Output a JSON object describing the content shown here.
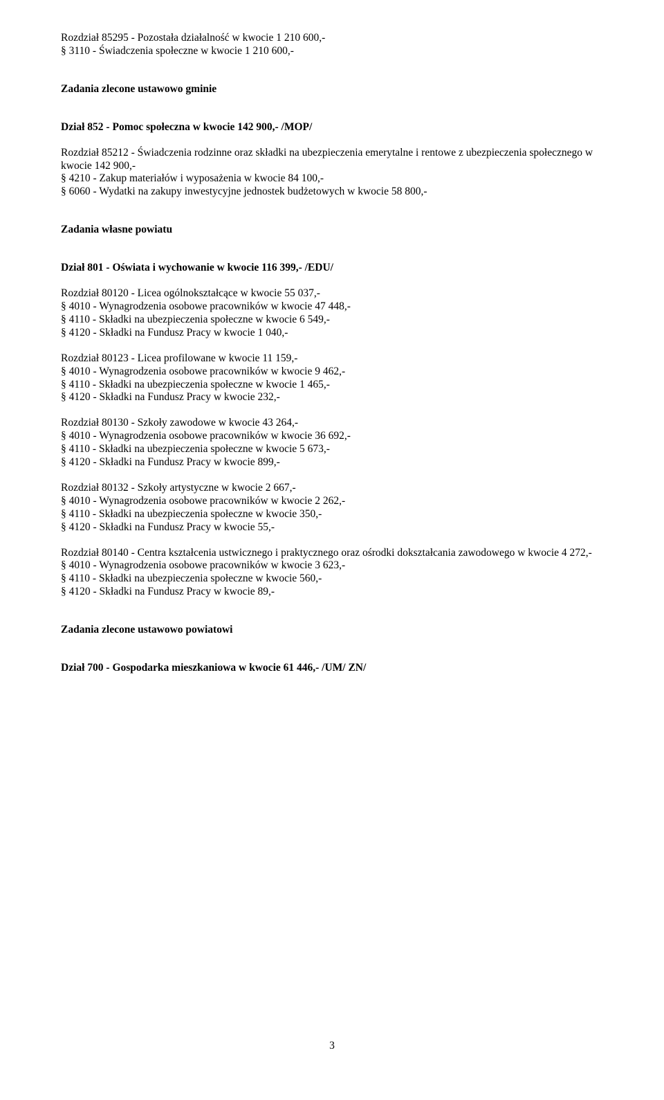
{
  "font": {
    "family": "Times New Roman",
    "body_size_pt": 12,
    "heading_weight": "bold",
    "body_weight": "normal"
  },
  "colors": {
    "text": "#000000",
    "background": "#ffffff"
  },
  "page_number": "3",
  "l1": "Rozdział 85295 - Pozostała działalność w kwocie 1 210 600,-",
  "l2": "§ 3110 - Świadczenia społeczne w kwocie 1 210 600,-",
  "h1": "Zadania zlecone ustawowo gminie",
  "h2": "Dział 852 - Pomoc społeczna w kwocie  142 900,-  /MOP/",
  "l3": "Rozdział 85212 - Świadczenia rodzinne oraz składki na ubezpieczenia emerytalne i rentowe z ubezpieczenia społecznego w kwocie  142 900,-",
  "l4": "§ 4210 - Zakup materiałów i wyposażenia w kwocie  84 100,-",
  "l5": "§ 6060 - Wydatki na zakupy inwestycyjne jednostek budżetowych w kwocie  58 800,-",
  "h3": "Zadania własne powiatu",
  "h4": "Dział 801 - Oświata i wychowanie w kwocie  116 399,-  /EDU/",
  "l6": "Rozdział 80120 - Licea ogólnokształcące w kwocie  55 037,-",
  "l7": "§ 4010 - Wynagrodzenia osobowe pracowników w kwocie  47 448,-",
  "l8": "§ 4110 - Składki na ubezpieczenia społeczne w kwocie  6 549,-",
  "l9": "§ 4120 - Składki na Fundusz Pracy w kwocie  1 040,-",
  "l10": "Rozdział 80123 - Licea profilowane w kwocie  11 159,-",
  "l11": "§ 4010 - Wynagrodzenia osobowe pracowników w kwocie  9 462,-",
  "l12": "§ 4110 - Składki na ubezpieczenia społeczne w kwocie  1 465,-",
  "l13": "§ 4120 - Składki na Fundusz Pracy w kwocie   232,-",
  "l14": "Rozdział 80130 - Szkoły zawodowe w kwocie  43 264,-",
  "l15": "§ 4010 - Wynagrodzenia osobowe pracowników w kwocie  36 692,-",
  "l16": "§ 4110 - Składki na ubezpieczenia społeczne w kwocie  5 673,-",
  "l17": "§ 4120 - Składki na Fundusz Pracy w kwocie   899,-",
  "l18": "Rozdział 80132 - Szkoły artystyczne w kwocie  2 667,-",
  "l19": "§ 4010 - Wynagrodzenia osobowe pracowników w kwocie  2 262,-",
  "l20": "§ 4110 - Składki na ubezpieczenia społeczne w kwocie   350,-",
  "l21": "§ 4120 - Składki na Fundusz Pracy w kwocie   55,-",
  "l22": "Rozdział 80140 - Centra kształcenia ustwicznego i praktycznego oraz ośrodki dokształcania zawodowego w kwocie  4 272,-",
  "l23": "§ 4010 - Wynagrodzenia osobowe pracowników w kwocie  3 623,-",
  "l24": "§ 4110 - Składki na ubezpieczenia społeczne w kwocie   560,-",
  "l25": "§ 4120 - Składki na Fundusz Pracy w kwocie   89,-",
  "h5": "Zadania zlecone ustawowo powiatowi",
  "h6": "Dział 700 - Gospodarka mieszkaniowa w kwocie  61 446,-  /UM/ ZN/"
}
